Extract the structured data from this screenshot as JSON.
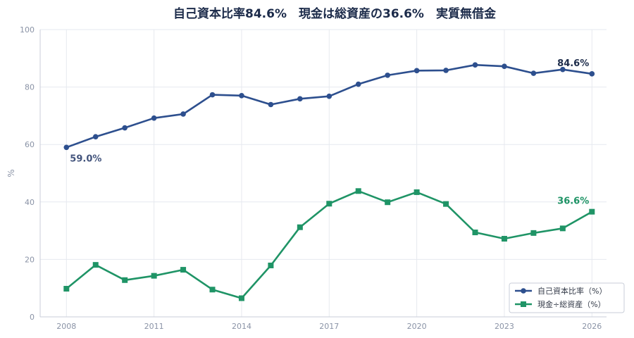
{
  "chart_data": {
    "type": "line",
    "title": "自己資本比率84.6%　現金は総資産の36.6%　実質無借金",
    "xlabel": "",
    "ylabel": "%",
    "x": [
      2008,
      2009,
      2010,
      2011,
      2012,
      2013,
      2014,
      2015,
      2016,
      2017,
      2018,
      2019,
      2020,
      2021,
      2022,
      2023,
      2024,
      2025,
      2026
    ],
    "xticks": [
      2008,
      2011,
      2014,
      2017,
      2020,
      2023,
      2026
    ],
    "xlim": [
      2007.1,
      2026.5
    ],
    "ylim": [
      0,
      100
    ],
    "yticks": [
      0,
      20,
      40,
      60,
      80,
      100
    ],
    "grid": true,
    "legend_position": "bottom-right",
    "series": [
      {
        "name": "自己資本比率（%）",
        "color": "#2d4f8e",
        "marker": "circle",
        "values": [
          59.0,
          62.7,
          65.8,
          69.2,
          70.6,
          77.3,
          77.0,
          73.9,
          75.9,
          76.8,
          81.0,
          84.1,
          85.7,
          85.8,
          87.7,
          87.2,
          84.8,
          86.1,
          84.6
        ]
      },
      {
        "name": "現金÷総資産（%）",
        "color": "#1f9466",
        "marker": "square",
        "values": [
          9.8,
          18.1,
          12.8,
          14.3,
          16.4,
          9.5,
          6.5,
          17.9,
          31.2,
          39.4,
          43.8,
          39.9,
          43.4,
          39.3,
          29.4,
          27.2,
          29.2,
          30.8,
          36.6
        ]
      }
    ],
    "annotations": [
      {
        "text": "59.0%",
        "series": 0,
        "x": 2008,
        "placement": "below-right",
        "color": "#44557d"
      },
      {
        "text": "84.6%",
        "series": 0,
        "x": 2026,
        "placement": "above-left",
        "color": "#1c2b4a"
      },
      {
        "text": "36.6%",
        "series": 1,
        "x": 2026,
        "placement": "above-left",
        "color": "#1f9466"
      }
    ]
  }
}
